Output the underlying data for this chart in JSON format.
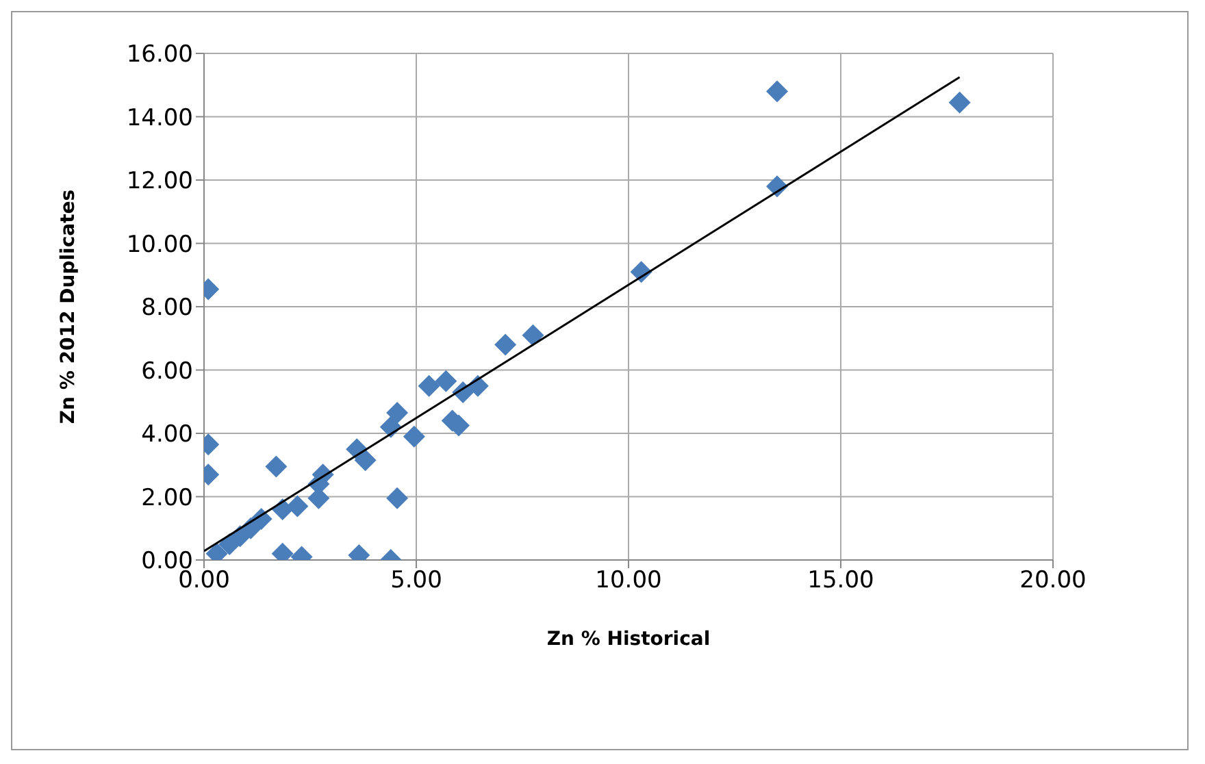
{
  "chart_data": {
    "type": "scatter",
    "xlabel": "Zn %  Historical",
    "ylabel": "Zn % 2012 Duplicates",
    "xlim": [
      0,
      20
    ],
    "ylim": [
      0,
      16
    ],
    "xticks": [
      {
        "value": 0,
        "label": "0.00"
      },
      {
        "value": 5,
        "label": "5.00"
      },
      {
        "value": 10,
        "label": "10.00"
      },
      {
        "value": 15,
        "label": "15.00"
      },
      {
        "value": 20,
        "label": "20.00"
      }
    ],
    "yticks": [
      {
        "value": 0,
        "label": "0.00"
      },
      {
        "value": 2,
        "label": "2.00"
      },
      {
        "value": 4,
        "label": "4.00"
      },
      {
        "value": 6,
        "label": "6.00"
      },
      {
        "value": 8,
        "label": "8.00"
      },
      {
        "value": 10,
        "label": "10.00"
      },
      {
        "value": 12,
        "label": "12.00"
      },
      {
        "value": 14,
        "label": "14.00"
      },
      {
        "value": 16,
        "label": "16.00"
      }
    ],
    "grid": true,
    "series": [
      {
        "type": "scatter",
        "color": "#4a7ebb",
        "marker": "diamond",
        "x": [
          0.1,
          0.1,
          0.1,
          0.3,
          0.6,
          0.85,
          1.1,
          1.35,
          1.7,
          1.85,
          2.3,
          1.85,
          2.2,
          2.7,
          2.7,
          2.8,
          3.6,
          3.8,
          3.65,
          4.4,
          4.55,
          4.4,
          4.55,
          4.95,
          5.3,
          5.7,
          6.1,
          5.85,
          6.0,
          6.45,
          7.1,
          7.75,
          10.3,
          13.5,
          13.5,
          17.8
        ],
        "values": [
          8.55,
          3.65,
          2.7,
          0.2,
          0.5,
          0.75,
          1.0,
          1.3,
          2.95,
          0.2,
          0.1,
          1.6,
          1.7,
          2.4,
          1.95,
          2.7,
          3.5,
          3.15,
          0.15,
          0,
          1.95,
          4.2,
          4.65,
          3.9,
          5.5,
          5.65,
          5.3,
          4.4,
          4.25,
          5.5,
          6.8,
          7.1,
          9.1,
          14.8,
          11.8,
          14.45
        ]
      },
      {
        "type": "line",
        "color": "#000000",
        "marker": "none",
        "x": [
          0,
          17.8
        ],
        "values": [
          0.28,
          15.25
        ]
      }
    ]
  }
}
